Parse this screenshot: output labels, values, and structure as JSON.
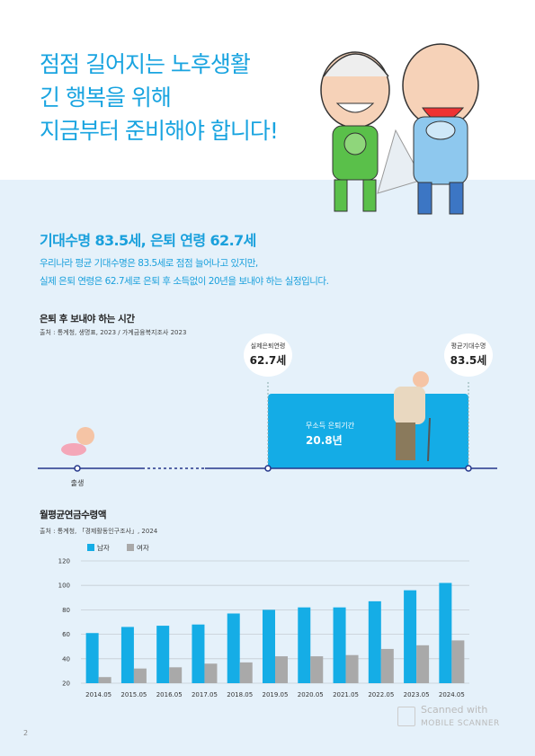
{
  "header": {
    "title": [
      "점점 길어지는 노후생활",
      "긴 행복을 위해",
      "지금부터 준비해야 합니다!"
    ]
  },
  "section": {
    "heading": "기대수명 83.5세, 은퇴 연령 62.7세",
    "body": [
      "우리나라 평균 기대수명은 83.5세로 점점 늘어나고 있지만,",
      "실제 은퇴 연령은 62.7세로 은퇴 후 소득없이 20년을 보내야 하는 실정입니다."
    ]
  },
  "timeline": {
    "title": "은퇴 후 보내야 하는 시간",
    "source": "출처 : 통계청, 생명표, 2023 / 가계금융복지조사 2023",
    "retire_label": "실제은퇴연령",
    "retire_value": "62.7세",
    "life_label": "평균기대수명",
    "life_value": "83.5세",
    "period_label": "무소득 은퇴기간",
    "period_value": "20.8년",
    "birth": "출생"
  },
  "chart_data": {
    "type": "bar",
    "title": "월평균연금수령액",
    "source": "출처 : 통계청, 「경제활동인구조사」, 2024",
    "categories": [
      "2014.05",
      "2015.05",
      "2016.05",
      "2017.05",
      "2018.05",
      "2019.05",
      "2020.05",
      "2021.05",
      "2022.05",
      "2023.05",
      "2024.05"
    ],
    "series": [
      {
        "name": "남자",
        "color": "#15ade6",
        "values": [
          61,
          66,
          67,
          68,
          77,
          80,
          82,
          82,
          87,
          96,
          102
        ]
      },
      {
        "name": "여자",
        "color": "#a9a9a9",
        "values": [
          25,
          32,
          33,
          36,
          37,
          42,
          42,
          43,
          48,
          51,
          55
        ]
      }
    ],
    "ylim": [
      20,
      120
    ],
    "yticks": [
      20,
      40,
      60,
      80,
      100,
      120
    ],
    "grid": true,
    "legend": "top-left"
  },
  "footer": {
    "page": "2",
    "scanner_top": "Scanned with",
    "scanner_bottom": "MOBILE SCANNER"
  }
}
